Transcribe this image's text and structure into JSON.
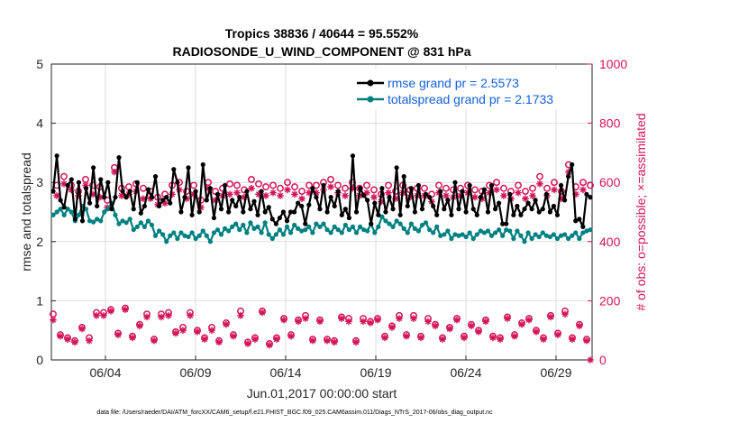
{
  "chart_data": {
    "type": "line",
    "title_line1": "Tropics 38836 / 40644 = 95.552%",
    "title_line2": "RADIOSONDE_U_WIND_COMPONENT @ 831 hPa",
    "ylabel_left": "rmse and totalspread",
    "ylabel_right": "# of obs: o=possible; ×=assimilated",
    "xlabel": "Jun.01,2017 00:00:00 start",
    "footer": "data file: /Users/raeder/DAI/ATM_forcXX/CAM6_setup/f.e21.FHIST_BGC.f09_025.CAM6assim.011/Diags_NTrS_2017-06/obs_diag_output.nc",
    "ylim_left": [
      0,
      5
    ],
    "ylim_right": [
      0,
      1000
    ],
    "xlim_days": [
      0,
      30.0
    ],
    "left_ticks": [
      "0",
      "1",
      "2",
      "3",
      "4",
      "5"
    ],
    "right_ticks": [
      "0",
      "200",
      "400",
      "600",
      "800",
      "1000"
    ],
    "x_tick_labels": [
      "06/04",
      "06/09",
      "06/14",
      "06/19",
      "06/24",
      "06/29"
    ],
    "x_tick_days": [
      3,
      8,
      13,
      18,
      23,
      28
    ],
    "series": [
      {
        "name": "rmse grand pr = 2.5573",
        "color": "#000000",
        "axis": "left",
        "values": [
          2.85,
          3.45,
          2.7,
          2.58,
          2.95,
          3.05,
          2.38,
          3.0,
          2.35,
          2.9,
          2.65,
          3.25,
          2.6,
          3.05,
          2.75,
          3.0,
          2.55,
          2.75,
          3.42,
          2.85,
          2.75,
          2.85,
          2.55,
          3.0,
          2.48,
          2.6,
          2.88,
          2.75,
          3.1,
          2.6,
          2.7,
          2.75,
          2.65,
          3.22,
          3.0,
          2.5,
          2.75,
          3.25,
          2.45,
          2.85,
          2.5,
          3.3,
          2.7,
          2.9,
          2.4,
          2.8,
          2.55,
          2.95,
          2.5,
          2.7,
          2.6,
          2.75,
          2.5,
          2.85,
          2.55,
          2.68,
          2.45,
          2.85,
          2.5,
          2.58,
          2.38,
          2.3,
          2.4,
          2.5,
          2.35,
          2.5,
          2.5,
          2.65,
          2.6,
          2.3,
          2.62,
          2.9,
          2.75,
          2.55,
          2.95,
          2.5,
          2.75,
          2.6,
          2.85,
          2.45,
          2.55,
          2.4,
          3.45,
          2.5,
          2.9,
          2.78,
          2.7,
          2.3,
          2.65,
          2.45,
          2.9,
          2.5,
          2.75,
          2.55,
          3.25,
          2.45,
          3.1,
          2.6,
          2.9,
          2.5,
          2.95,
          2.55,
          2.8,
          2.75,
          2.6,
          2.45,
          2.85,
          2.55,
          2.7,
          2.45,
          3.0,
          2.55,
          2.85,
          2.5,
          2.95,
          2.55,
          2.45,
          2.75,
          2.88,
          2.5,
          2.95,
          2.55,
          2.65,
          2.3,
          2.3,
          2.8,
          2.45,
          2.6,
          2.45,
          2.55,
          2.65,
          2.55,
          2.7,
          2.5,
          2.55,
          2.8,
          2.5,
          2.6,
          2.45,
          2.95,
          2.7,
          3.1,
          3.3,
          2.35,
          2.38,
          2.25,
          2.8,
          2.75
        ]
      },
      {
        "name": "totalspread grand pr = 2.1733",
        "color": "#008080",
        "axis": "left",
        "values": [
          2.45,
          2.5,
          2.55,
          2.45,
          2.55,
          2.5,
          2.35,
          2.45,
          2.6,
          2.55,
          2.35,
          2.33,
          2.38,
          2.35,
          2.5,
          2.55,
          2.65,
          2.45,
          2.3,
          2.35,
          2.32,
          2.38,
          2.2,
          2.25,
          2.32,
          2.25,
          2.35,
          2.28,
          2.1,
          2.18,
          2.12,
          2.0,
          2.1,
          2.15,
          2.05,
          2.15,
          2.1,
          2.08,
          2.15,
          2.05,
          2.1,
          2.18,
          2.1,
          2.0,
          2.15,
          2.2,
          2.12,
          2.22,
          2.18,
          2.25,
          2.3,
          2.2,
          2.28,
          2.15,
          2.32,
          2.22,
          2.25,
          2.15,
          2.32,
          2.12,
          2.05,
          2.12,
          2.2,
          2.12,
          2.25,
          2.15,
          2.28,
          2.22,
          2.18,
          2.2,
          2.25,
          2.15,
          2.3,
          2.25,
          2.3,
          2.2,
          2.15,
          2.25,
          2.2,
          2.15,
          2.28,
          2.2,
          2.25,
          2.15,
          2.25,
          2.2,
          2.18,
          2.3,
          2.15,
          2.25,
          2.42,
          2.35,
          2.3,
          2.25,
          2.35,
          2.3,
          2.22,
          2.15,
          2.3,
          2.22,
          2.18,
          2.28,
          2.32,
          2.2,
          2.15,
          2.25,
          2.1,
          2.12,
          2.18,
          2.05,
          2.12,
          2.1,
          2.12,
          2.08,
          2.15,
          2.05,
          2.12,
          2.18,
          2.15,
          2.18,
          2.1,
          2.15,
          2.2,
          2.1,
          2.2,
          2.18,
          2.05,
          2.18,
          2.1,
          2.0,
          2.15,
          2.05,
          2.12,
          2.08,
          2.15,
          2.1,
          2.08,
          2.12,
          2.05,
          2.1,
          2.12,
          2.05,
          2.1,
          2.15,
          2.05,
          2.15,
          2.18,
          2.2
        ]
      },
      {
        "name": "possible",
        "color": "#d4145a",
        "axis": "right",
        "marker": "circle",
        "values": [
          155,
          590,
          85,
          620,
          75,
          590,
          65,
          570,
          110,
          610,
          75,
          590,
          160,
          585,
          160,
          540,
          170,
          650,
          90,
          580,
          175,
          585,
          80,
          595,
          120,
          580,
          155,
          570,
          70,
          550,
          155,
          560,
          160,
          590,
          95,
          600,
          110,
          570,
          160,
          590,
          100,
          540,
          75,
          600,
          110,
          570,
          65,
          580,
          125,
          595,
          85,
          590,
          165,
          575,
          60,
          610,
          75,
          595,
          165,
          585,
          55,
          590,
          75,
          580,
          140,
          600,
          85,
          585,
          135,
          570,
          150,
          590,
          70,
          590,
          135,
          600,
          70,
          610,
          65,
          590,
          145,
          580,
          140,
          600,
          65,
          580,
          140,
          590,
          130,
          575,
          140,
          560,
          80,
          590,
          115,
          570,
          150,
          590,
          85,
          575,
          150,
          580,
          80,
          580,
          140,
          560,
          120,
          590,
          75,
          580,
          110,
          575,
          140,
          580,
          80,
          590,
          120,
          575,
          100,
          570,
          135,
          590,
          80,
          600,
          75,
          580,
          145,
          570,
          85,
          590,
          125,
          570,
          140,
          580,
          100,
          620,
          75,
          580,
          150,
          600,
          90,
          570,
          165,
          660,
          75,
          585,
          120,
          600,
          70,
          590
        ]
      },
      {
        "name": "assimilated",
        "color": "#d4145a",
        "axis": "right",
        "marker": "asterisk",
        "values": [
          135,
          555,
          80,
          595,
          70,
          575,
          60,
          555,
          105,
          590,
          65,
          560,
          150,
          550,
          150,
          515,
          165,
          635,
          85,
          555,
          170,
          560,
          75,
          570,
          115,
          545,
          145,
          545,
          65,
          525,
          145,
          530,
          150,
          560,
          90,
          575,
          100,
          545,
          150,
          560,
          95,
          515,
          70,
          580,
          100,
          540,
          60,
          555,
          120,
          560,
          80,
          565,
          150,
          550,
          55,
          580,
          70,
          560,
          160,
          555,
          50,
          565,
          70,
          555,
          135,
          575,
          80,
          560,
          130,
          545,
          140,
          565,
          65,
          565,
          130,
          575,
          65,
          585,
          60,
          565,
          140,
          555,
          130,
          580,
          60,
          555,
          130,
          565,
          125,
          550,
          135,
          535,
          75,
          565,
          110,
          545,
          140,
          565,
          80,
          550,
          140,
          555,
          75,
          555,
          130,
          535,
          115,
          565,
          70,
          555,
          105,
          550,
          135,
          555,
          75,
          565,
          115,
          550,
          95,
          545,
          130,
          565,
          75,
          575,
          70,
          555,
          140,
          545,
          80,
          565,
          120,
          545,
          135,
          555,
          95,
          595,
          70,
          555,
          145,
          575,
          85,
          545,
          155,
          635,
          70,
          560,
          115,
          575,
          65,
          0
        ]
      }
    ]
  }
}
